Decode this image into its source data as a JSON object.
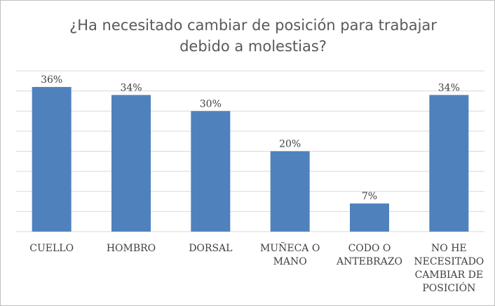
{
  "chart_data": {
    "type": "bar",
    "title": "¿Ha necesitado cambiar de posición para trabajar debido a molestias?",
    "categories": [
      "CUELLO",
      "HOMBRO",
      "DORSAL",
      "MUÑECA O MANO",
      "CODO O ANTEBRAZO",
      "NO HE NECESITADO CAMBIAR DE POSICIÓN"
    ],
    "values": [
      36,
      34,
      30,
      20,
      7,
      34
    ],
    "value_labels": [
      "36%",
      "34%",
      "30%",
      "20%",
      "7%",
      "34%"
    ],
    "color": "#4f81bd",
    "ylim": [
      0,
      40
    ],
    "yticks": [
      0,
      5,
      10,
      15,
      20,
      25,
      30,
      35,
      40
    ],
    "grid": true
  }
}
